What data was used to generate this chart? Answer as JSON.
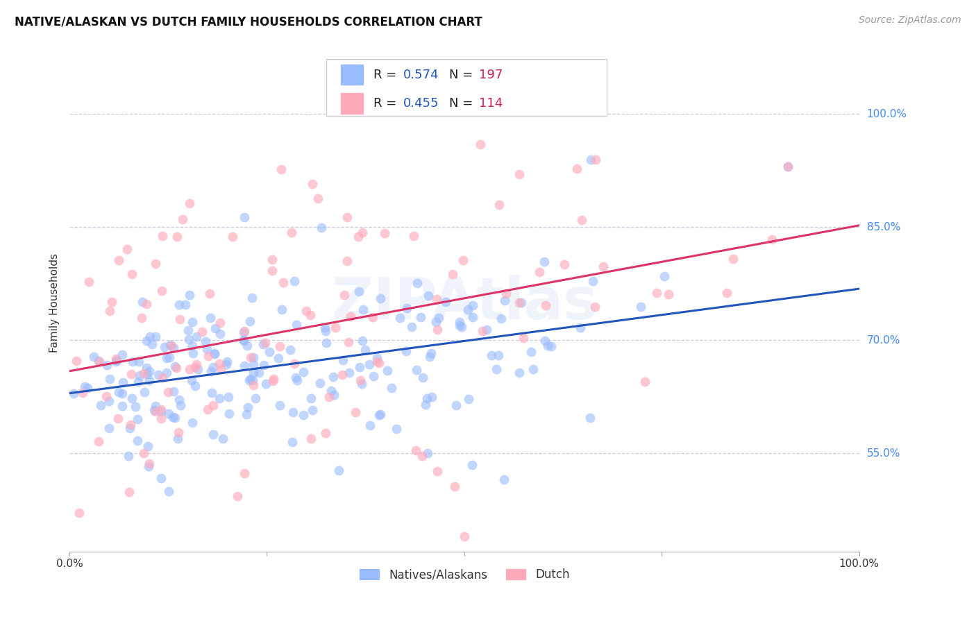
{
  "title": "NATIVE/ALASKAN VS DUTCH FAMILY HOUSEHOLDS CORRELATION CHART",
  "source": "Source: ZipAtlas.com",
  "ylabel": "Family Households",
  "ytick_labels": [
    "55.0%",
    "70.0%",
    "85.0%",
    "100.0%"
  ],
  "ytick_values": [
    0.55,
    0.7,
    0.85,
    1.0
  ],
  "xrange": [
    0.0,
    1.0
  ],
  "yrange": [
    0.42,
    1.08
  ],
  "blue_scatter_color": "#99bbff",
  "pink_scatter_color": "#ffaabb",
  "blue_line_color": "#2255bb",
  "pink_line_color": "#dd3366",
  "grid_color": "#ccccdd",
  "R_blue": "0.574",
  "N_blue": "197",
  "R_pink": "0.455",
  "N_pink": "114",
  "legend_label_blue": "Natives/Alaskans",
  "legend_label_pink": "Dutch",
  "watermark": "ZIPAtlas",
  "title_fontsize": 12,
  "source_fontsize": 10,
  "ylabel_fontsize": 11,
  "tick_fontsize": 11,
  "legend_fontsize": 13,
  "stat_text_color": "#2255bb",
  "stat_label_color": "#222222",
  "right_tick_color": "#4488ee",
  "bottom_tick_color": "#333333"
}
